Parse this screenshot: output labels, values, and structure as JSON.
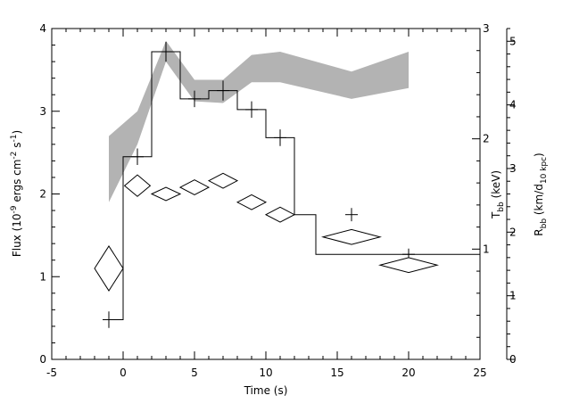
{
  "chart_data": {
    "type": "line",
    "title": "",
    "xlabel": "Time (s)",
    "ylabel": "Flux (10⁻⁹ ergs cm⁻² s⁻¹)",
    "ylabel_right_inner": "T_bb (keV)",
    "ylabel_right_outer": "R_bb (km/d_10 kpc)",
    "xlim": [
      -5,
      25
    ],
    "ylim": [
      0,
      4
    ],
    "y_right_inner_lim": [
      0,
      3
    ],
    "y_right_outer_lim": [
      0,
      5.2
    ],
    "x_ticks": [
      "-5",
      "0",
      "5",
      "10",
      "15",
      "20",
      "25"
    ],
    "y_ticks": [
      "0",
      "1",
      "2",
      "3",
      "4"
    ],
    "y_right_inner_ticks": [
      "1",
      "2",
      "3"
    ],
    "y_right_outer_ticks": [
      "0",
      "1",
      "2",
      "3",
      "4",
      "5"
    ],
    "grid": false,
    "series": [
      {
        "style": "histogram",
        "edges": [
          -1,
          0,
          2,
          4,
          6,
          8,
          10,
          12,
          13.5,
          18,
          25
        ],
        "values": [
          0.48,
          2.45,
          3.72,
          3.15,
          3.25,
          3.02,
          2.68,
          1.75,
          1.27,
          1.27
        ],
        "error_points": [
          {
            "x": -1.0,
            "y": 0.48,
            "err": 0.1
          },
          {
            "x": 1.0,
            "y": 2.45,
            "err": 0.1
          },
          {
            "x": 3.0,
            "y": 3.72,
            "err": 0.12
          },
          {
            "x": 5.0,
            "y": 3.15,
            "err": 0.1
          },
          {
            "x": 7.0,
            "y": 3.25,
            "err": 0.12
          },
          {
            "x": 9.0,
            "y": 3.02,
            "err": 0.1
          },
          {
            "x": 11.0,
            "y": 2.68,
            "err": 0.1
          },
          {
            "x": 16.0,
            "y": 1.75,
            "err": 0.08
          },
          {
            "x": 20.0,
            "y": 1.27,
            "err": 0.07
          }
        ]
      },
      {
        "style": "band",
        "axis": "left",
        "x": [
          -1,
          1,
          3,
          5,
          7,
          9,
          11,
          16,
          20
        ],
        "lower": [
          1.9,
          2.6,
          3.6,
          3.12,
          3.1,
          3.35,
          3.35,
          3.15,
          3.28
        ],
        "upper": [
          2.7,
          3.0,
          3.85,
          3.38,
          3.38,
          3.68,
          3.72,
          3.48,
          3.72
        ]
      },
      {
        "style": "diamonds",
        "axis": "left",
        "points": [
          {
            "x": -1.0,
            "y": 1.1,
            "xerr": 1.0,
            "yerr": 0.27
          },
          {
            "x": 1.0,
            "y": 2.1,
            "xerr": 0.9,
            "yerr": 0.13
          },
          {
            "x": 3.0,
            "y": 2.0,
            "xerr": 1.0,
            "yerr": 0.08
          },
          {
            "x": 5.0,
            "y": 2.08,
            "xerr": 1.0,
            "yerr": 0.09
          },
          {
            "x": 7.0,
            "y": 2.16,
            "xerr": 1.0,
            "yerr": 0.09
          },
          {
            "x": 9.0,
            "y": 1.9,
            "xerr": 1.0,
            "yerr": 0.09
          },
          {
            "x": 11.0,
            "y": 1.75,
            "xerr": 1.0,
            "yerr": 0.09
          },
          {
            "x": 16.0,
            "y": 1.48,
            "xerr": 2.0,
            "yerr": 0.09
          },
          {
            "x": 20.0,
            "y": 1.14,
            "xerr": 2.0,
            "yerr": 0.09
          }
        ]
      }
    ]
  }
}
